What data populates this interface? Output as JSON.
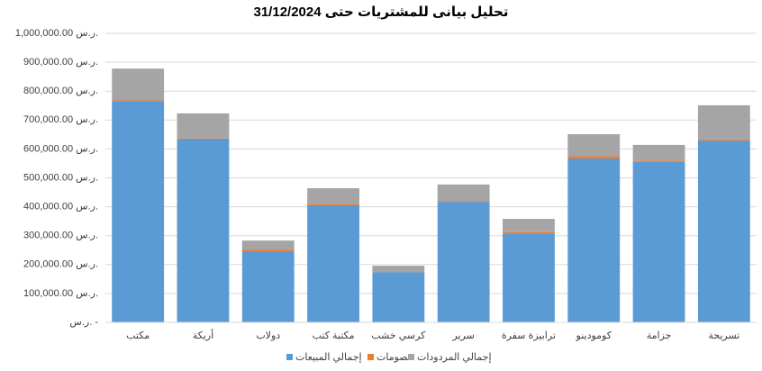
{
  "chart_data": {
    "type": "bar",
    "stacked": true,
    "title": "تحليل بيانى للمشتريات حتى 31/12/2024",
    "categories": [
      "مكتب",
      "أريكة",
      "دولاب",
      "مكتبة كتب",
      "كرسي خشب",
      "سرير",
      "ترابيزة سفرة",
      "كومودينو",
      "جزامة",
      "تسريحة"
    ],
    "series": [
      {
        "name": "إجمالي المبيعات",
        "color": "#5b9bd5",
        "values": [
          766000,
          636000,
          246000,
          405000,
          174000,
          417000,
          308000,
          567000,
          555000,
          629000
        ]
      },
      {
        "name": "خصومات",
        "color": "#ed7d31",
        "values": [
          2000,
          2000,
          5000,
          5000,
          3000,
          2000,
          4000,
          8000,
          5000,
          4000
        ]
      },
      {
        "name": "إجمالي المردودات",
        "color": "#a5a5a5",
        "values": [
          110000,
          85000,
          32000,
          54000,
          19000,
          58000,
          46000,
          76000,
          54000,
          118000
        ]
      }
    ],
    "ylim": [
      0,
      1000000
    ],
    "yticks": [
      {
        "value": 0,
        "label": "ر.س. -"
      },
      {
        "value": 100000,
        "label": "100,000.00 ر.س."
      },
      {
        "value": 200000,
        "label": "200,000.00 ر.س."
      },
      {
        "value": 300000,
        "label": "300,000.00 ر.س."
      },
      {
        "value": 400000,
        "label": "400,000.00 ر.س."
      },
      {
        "value": 500000,
        "label": "500,000.00 ر.س."
      },
      {
        "value": 600000,
        "label": "600,000.00 ر.س."
      },
      {
        "value": 700000,
        "label": "700,000.00 ر.س."
      },
      {
        "value": 800000,
        "label": "800,000.00 ر.س."
      },
      {
        "value": 900000,
        "label": "900,000.00 ر.س."
      },
      {
        "value": 1000000,
        "label": "1,000,000.00 ر.س."
      }
    ],
    "grid": true
  }
}
